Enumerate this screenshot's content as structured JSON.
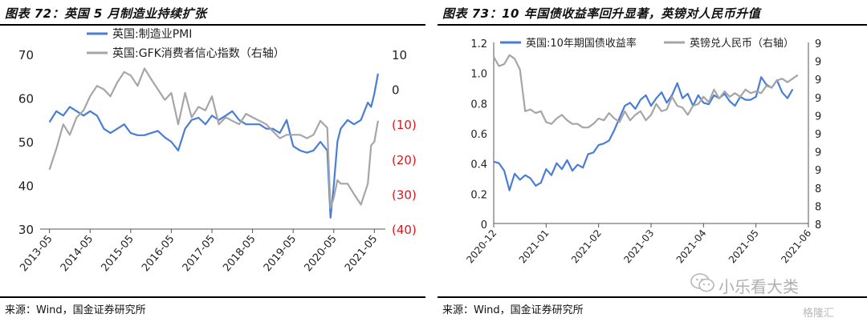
{
  "watermark": {
    "text": "小乐看大类",
    "badge": "格隆汇"
  },
  "chart_data": [
    {
      "title": "图表 72：英国 5 月制造业持续扩张",
      "source": "来源：Wind，国金证券研究所",
      "type": "line",
      "x_ticks": [
        "2013-05",
        "2014-05",
        "2015-05",
        "2016-05",
        "2017-05",
        "2018-05",
        "2019-05",
        "2020-05",
        "2021-05"
      ],
      "y_left": {
        "min": 30,
        "max": 70,
        "ticks": [
          "30",
          "40",
          "50",
          "60",
          "70"
        ]
      },
      "y_right": {
        "min": -40,
        "max": 10,
        "ticks": [
          "(40)",
          "(30)",
          "(20)",
          "(10)",
          "0",
          "10"
        ],
        "negative_color": "#e0151b"
      },
      "grid": false,
      "legend": "top-left",
      "series": [
        {
          "name": "英国:制造业PMI",
          "axis": "left",
          "color": "#4a7dd6",
          "x": [
            2013.33,
            2013.5,
            2013.67,
            2013.83,
            2014.0,
            2014.17,
            2014.33,
            2014.5,
            2014.67,
            2014.83,
            2015.0,
            2015.17,
            2015.33,
            2015.5,
            2015.67,
            2015.83,
            2016.0,
            2016.17,
            2016.33,
            2016.5,
            2016.67,
            2016.83,
            2017.0,
            2017.17,
            2017.33,
            2017.5,
            2017.67,
            2017.83,
            2018.0,
            2018.17,
            2018.33,
            2018.5,
            2018.67,
            2018.83,
            2019.0,
            2019.17,
            2019.33,
            2019.5,
            2019.67,
            2019.83,
            2020.0,
            2020.17,
            2020.25,
            2020.33,
            2020.42,
            2020.5,
            2020.67,
            2020.83,
            2021.0,
            2021.17,
            2021.25,
            2021.33,
            2021.42
          ],
          "values": [
            54.5,
            57,
            56,
            58,
            57,
            56,
            57,
            56,
            53,
            52,
            53,
            54,
            52,
            51.5,
            51.5,
            52,
            52.5,
            51,
            50,
            48,
            53,
            55,
            55.5,
            54,
            56,
            55,
            56,
            57,
            55,
            54,
            54,
            54,
            53,
            53,
            52,
            55,
            49,
            48,
            47.5,
            48,
            50,
            48,
            32.6,
            40,
            50,
            53,
            55,
            54,
            55,
            59,
            58,
            61,
            65.6
          ]
        },
        {
          "name": "英国:GFK消费者信心指数（右轴）",
          "axis": "right",
          "color": "#a6a6a6",
          "x": [
            2013.33,
            2013.5,
            2013.67,
            2013.83,
            2014.0,
            2014.17,
            2014.33,
            2014.5,
            2014.67,
            2014.83,
            2015.0,
            2015.17,
            2015.33,
            2015.5,
            2015.67,
            2015.83,
            2016.0,
            2016.17,
            2016.33,
            2016.5,
            2016.67,
            2016.83,
            2017.0,
            2017.17,
            2017.33,
            2017.5,
            2017.67,
            2017.83,
            2018.0,
            2018.17,
            2018.33,
            2018.5,
            2018.67,
            2018.83,
            2019.0,
            2019.17,
            2019.33,
            2019.5,
            2019.67,
            2019.83,
            2020.0,
            2020.17,
            2020.25,
            2020.33,
            2020.42,
            2020.5,
            2020.67,
            2020.83,
            2021.0,
            2021.17,
            2021.25,
            2021.33,
            2021.42
          ],
          "values": [
            -23,
            -17,
            -10,
            -13,
            -8,
            -6,
            -2,
            1,
            0,
            -2,
            2,
            5,
            4,
            1,
            6,
            3,
            0,
            -3,
            -1,
            -10,
            -1,
            -8,
            -5,
            -6,
            -2,
            -10,
            -8,
            -9,
            -10,
            -7,
            -8,
            -9,
            -10,
            -12,
            -14,
            -13,
            -13,
            -13,
            -14,
            -13,
            -9,
            -11,
            -34,
            -31,
            -26,
            -27,
            -27,
            -30,
            -33,
            -27,
            -16,
            -15,
            -9
          ]
        }
      ]
    },
    {
      "title": "图表 73：10 年国债收益率回升显著，英镑对人民币升值",
      "source": "来源：Wind，国金证券研究所",
      "type": "line",
      "x_ticks": [
        "2020-12",
        "2021-01",
        "2021-02",
        "2021-03",
        "2021-04",
        "2021-05",
        "2021-06"
      ],
      "x_domain": [
        0,
        6
      ],
      "y_left": {
        "min": 0,
        "max": 1.2,
        "ticks": [
          "0",
          "0.2",
          "0.4",
          "0.6",
          "0.8",
          "1.0",
          "1.2"
        ]
      },
      "y_right": {
        "min": 8,
        "max": 9,
        "ticks": [
          "8",
          "8",
          "8",
          "9",
          "9",
          "9",
          "9",
          "9",
          "9",
          "9",
          "9"
        ]
      },
      "grid": false,
      "legend": "top",
      "series": [
        {
          "name": "英国:10年期国债收益率",
          "axis": "left",
          "color": "#4a7dd6",
          "x": [
            0,
            0.1,
            0.2,
            0.3,
            0.4,
            0.5,
            0.6,
            0.7,
            0.8,
            0.9,
            1.0,
            1.1,
            1.2,
            1.3,
            1.4,
            1.5,
            1.6,
            1.7,
            1.8,
            1.9,
            2.0,
            2.1,
            2.2,
            2.3,
            2.4,
            2.5,
            2.6,
            2.7,
            2.8,
            2.9,
            3.0,
            3.1,
            3.2,
            3.3,
            3.4,
            3.5,
            3.6,
            3.7,
            3.8,
            3.9,
            4.0,
            4.1,
            4.2,
            4.3,
            4.4,
            4.5,
            4.6,
            4.7,
            4.8,
            4.9,
            5.0,
            5.1,
            5.2,
            5.3,
            5.4,
            5.5,
            5.6,
            5.7
          ],
          "values": [
            0.41,
            0.4,
            0.35,
            0.22,
            0.33,
            0.29,
            0.32,
            0.3,
            0.25,
            0.27,
            0.36,
            0.32,
            0.4,
            0.36,
            0.42,
            0.35,
            0.39,
            0.37,
            0.46,
            0.47,
            0.52,
            0.53,
            0.55,
            0.62,
            0.7,
            0.78,
            0.8,
            0.76,
            0.82,
            0.85,
            0.78,
            0.83,
            0.87,
            0.8,
            0.85,
            0.93,
            0.83,
            0.86,
            0.78,
            0.85,
            0.8,
            0.79,
            0.85,
            0.83,
            0.86,
            0.81,
            0.78,
            0.84,
            0.82,
            0.82,
            0.84,
            0.97,
            0.92,
            0.9,
            0.95,
            0.87,
            0.83,
            0.89
          ]
        },
        {
          "name": "英镑兑人民币（右轴）",
          "axis": "right",
          "color": "#a6a6a6",
          "x": [
            0,
            0.1,
            0.2,
            0.3,
            0.4,
            0.5,
            0.6,
            0.7,
            0.8,
            0.9,
            1.0,
            1.1,
            1.2,
            1.3,
            1.4,
            1.5,
            1.6,
            1.7,
            1.8,
            1.9,
            2.0,
            2.1,
            2.2,
            2.3,
            2.4,
            2.5,
            2.6,
            2.7,
            2.8,
            2.9,
            3.0,
            3.1,
            3.2,
            3.3,
            3.4,
            3.5,
            3.6,
            3.7,
            3.8,
            3.9,
            4.0,
            4.1,
            4.2,
            4.3,
            4.4,
            4.5,
            4.6,
            4.7,
            4.8,
            4.9,
            5.0,
            5.1,
            5.2,
            5.3,
            5.4,
            5.5,
            5.6,
            5.7,
            5.8
          ],
          "values": [
            8.92,
            8.87,
            8.88,
            8.93,
            8.91,
            8.85,
            8.62,
            8.63,
            8.61,
            8.62,
            8.56,
            8.55,
            8.58,
            8.6,
            8.57,
            8.55,
            8.55,
            8.53,
            8.53,
            8.55,
            8.58,
            8.57,
            8.61,
            8.58,
            8.56,
            8.62,
            8.57,
            8.6,
            8.62,
            8.57,
            8.6,
            8.66,
            8.62,
            8.63,
            8.7,
            8.65,
            8.64,
            8.6,
            8.65,
            8.66,
            8.7,
            8.67,
            8.74,
            8.69,
            8.73,
            8.7,
            8.72,
            8.7,
            8.74,
            8.72,
            8.73,
            8.72,
            8.76,
            8.75,
            8.79,
            8.8,
            8.78,
            8.8,
            8.82
          ]
        }
      ]
    }
  ]
}
